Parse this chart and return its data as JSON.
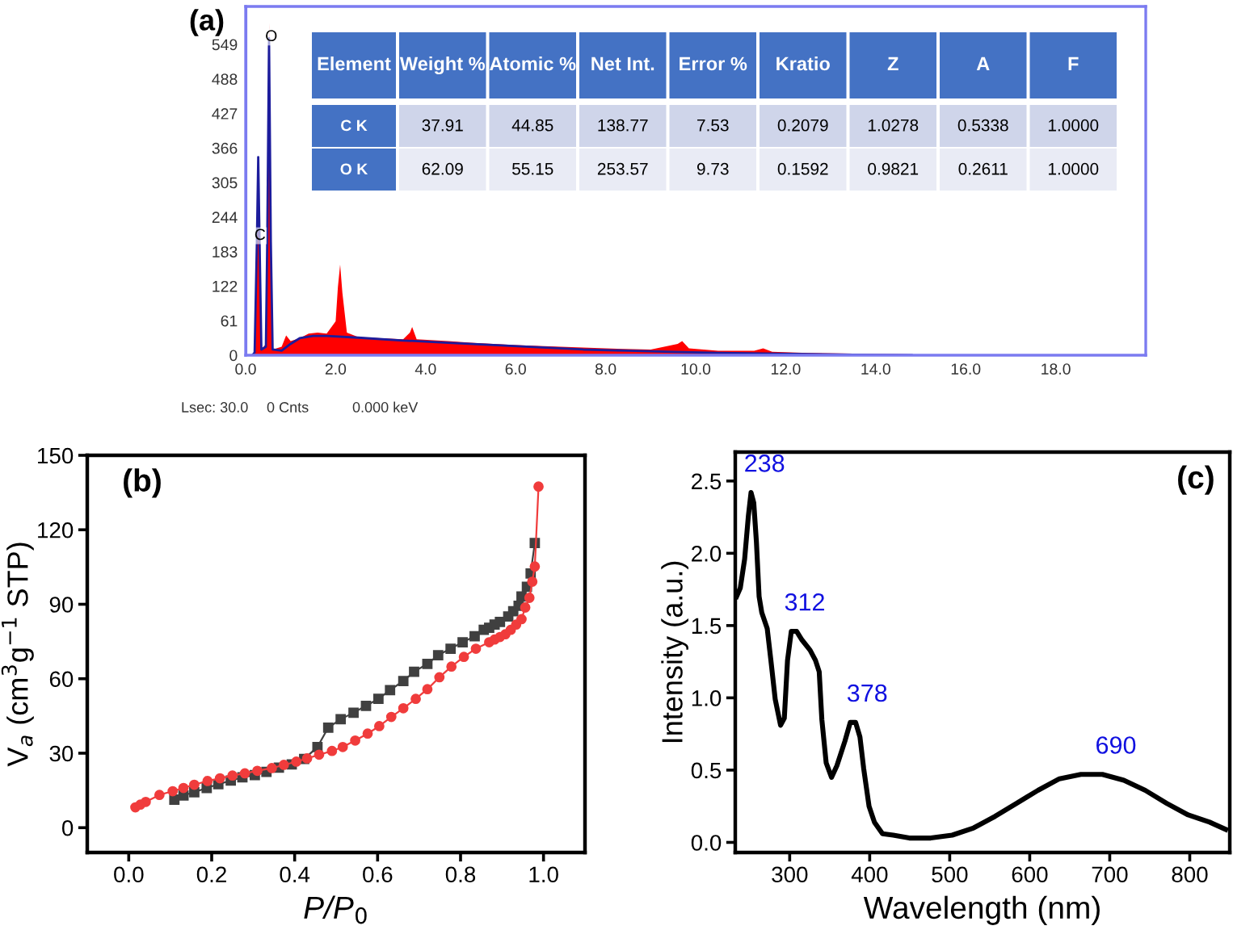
{
  "chart_data": [
    {
      "type": "area",
      "title": "(a)",
      "xlim": [
        0,
        20
      ],
      "ylim": [
        0,
        616
      ],
      "xticks": [
        {
          "value": 0,
          "label": "0.0"
        },
        {
          "value": 2,
          "label": "2.0"
        },
        {
          "value": 4,
          "label": "4.0"
        },
        {
          "value": 6,
          "label": "6.0"
        },
        {
          "value": 8,
          "label": "8.0"
        },
        {
          "value": 10,
          "label": "10.0"
        },
        {
          "value": 12,
          "label": "12.0"
        },
        {
          "value": 14,
          "label": "14.0"
        },
        {
          "value": 16,
          "label": "16.0"
        },
        {
          "value": 18,
          "label": "18.0"
        }
      ],
      "yticks": [
        0,
        61,
        122,
        183,
        244,
        305,
        366,
        427,
        488,
        549
      ],
      "series": [
        {
          "type": "area",
          "color": "#ff0000",
          "x": [
            0.1,
            0.2,
            0.25,
            0.28,
            0.31,
            0.35,
            0.45,
            0.5,
            0.525,
            0.55,
            0.6,
            0.8,
            0.9,
            1.0,
            1.2,
            1.4,
            1.6,
            1.8,
            2.0,
            2.05,
            2.1,
            2.15,
            2.25,
            2.5,
            3.0,
            3.5,
            3.65,
            3.7,
            3.8,
            4.5,
            5.0,
            6.0,
            7.0,
            8.0,
            9.0,
            9.6,
            9.7,
            9.85,
            10.5,
            11.3,
            11.5,
            11.7,
            12.5,
            13.5,
            14.5,
            15.0,
            15.5
          ],
          "values": [
            0,
            5,
            150,
            353,
            150,
            10,
            20,
            300,
            587,
            300,
            10,
            15,
            35,
            25,
            30,
            38,
            40,
            38,
            60,
            120,
            160,
            110,
            40,
            32,
            30,
            28,
            40,
            50,
            28,
            25,
            22,
            18,
            15,
            12,
            10,
            20,
            25,
            12,
            8,
            8,
            12,
            6,
            4,
            3,
            2,
            1,
            0
          ]
        },
        {
          "type": "line",
          "color": "#1c1c9c",
          "x": [
            0.15,
            0.2,
            0.25,
            0.28,
            0.31,
            0.35,
            0.45,
            0.48,
            0.52,
            0.56,
            0.6,
            0.8,
            1.0,
            1.2,
            1.5,
            1.8,
            2.5,
            3.5,
            4.5,
            5.5,
            6.5,
            7.5,
            8.5,
            9.5,
            10.5,
            11.5,
            12.5,
            13.5,
            14.8
          ],
          "values": [
            0,
            5,
            200,
            350,
            200,
            10,
            15,
            200,
            560,
            200,
            10,
            8,
            20,
            30,
            34,
            34,
            31,
            26,
            22,
            18,
            14,
            10,
            8,
            6,
            4,
            3,
            2,
            1,
            0
          ]
        }
      ],
      "annotations": [
        {
          "text": "C",
          "x": 0.32,
          "y": 211
        },
        {
          "text": "O",
          "x": 0.57,
          "y": 562
        },
        "Lsec: 30.0",
        "0 Cnts",
        "0.000 keV"
      ]
    },
    {
      "type": "other",
      "ylabel": "Element",
      "categories": [
        "Weight %",
        "Atomic %",
        "Net Int.",
        "Error %",
        "Kratio",
        "Z",
        "A",
        "F"
      ],
      "y_categories": [
        "C K",
        "O K"
      ],
      "cell_labels": [
        [
          "37.91",
          "44.85",
          "138.77",
          "7.53",
          "0.2079",
          "1.0278",
          "0.5338",
          "1.0000"
        ],
        [
          "62.09",
          "55.15",
          "253.57",
          "9.73",
          "0.1592",
          "0.9821",
          "0.2611",
          "1.0000"
        ]
      ]
    },
    {
      "type": "line",
      "title": "(b)",
      "xlabel": "P/P$_{0}$",
      "ylabel": "V$_{a}$ (cm$^{3}$g$^{−1}$ STP)",
      "xlim": [
        -0.1,
        1.1
      ],
      "ylim": [
        -10,
        150
      ],
      "xticks": [
        {
          "value": 0,
          "label": "0.0"
        },
        {
          "value": 0.2,
          "label": "0.2"
        },
        {
          "value": 0.4,
          "label": "0.4"
        },
        {
          "value": 0.6,
          "label": "0.6"
        },
        {
          "value": 0.8,
          "label": "0.8"
        },
        {
          "value": 1.0,
          "label": "1.0"
        }
      ],
      "yticks": [
        0,
        30,
        60,
        90,
        120,
        150
      ],
      "series": [
        {
          "color": "#f03c3c",
          "marker": "circle",
          "x": [
            0.016,
            0.028,
            0.041,
            0.074,
            0.106,
            0.132,
            0.158,
            0.19,
            0.22,
            0.25,
            0.28,
            0.31,
            0.345,
            0.374,
            0.404,
            0.43,
            0.459,
            0.49,
            0.516,
            0.546,
            0.576,
            0.604,
            0.633,
            0.662,
            0.692,
            0.72,
            0.749,
            0.778,
            0.808,
            0.837,
            0.869,
            0.882,
            0.895,
            0.908,
            0.921,
            0.934,
            0.947,
            0.956,
            0.966,
            0.973,
            0.979,
            0.988
          ],
          "values": [
            8.2,
            9.3,
            10.4,
            13.2,
            14.7,
            16.0,
            17.3,
            18.8,
            19.9,
            21.0,
            21.9,
            22.9,
            24.0,
            25.3,
            26.6,
            27.9,
            29.4,
            30.9,
            32.5,
            35.1,
            37.9,
            40.9,
            44.6,
            48.1,
            51.9,
            55.8,
            60.6,
            64.9,
            68.8,
            72.1,
            74.7,
            75.8,
            76.8,
            77.9,
            79.7,
            81.8,
            84.0,
            88.7,
            92.6,
            99.1,
            105.2,
            137.4
          ]
        },
        {
          "color": "#404040",
          "marker": "square",
          "x": [
            0.11,
            0.132,
            0.158,
            0.188,
            0.216,
            0.246,
            0.274,
            0.304,
            0.332,
            0.362,
            0.393,
            0.423,
            0.455,
            0.481,
            0.511,
            0.542,
            0.572,
            0.602,
            0.63,
            0.662,
            0.688,
            0.72,
            0.746,
            0.776,
            0.805,
            0.834,
            0.856,
            0.869,
            0.882,
            0.895,
            0.915,
            0.927,
            0.94,
            0.947,
            0.96,
            0.969,
            0.979
          ],
          "values": [
            11.3,
            13.0,
            14.3,
            16.0,
            17.5,
            19.0,
            20.3,
            21.2,
            22.5,
            24.2,
            25.5,
            27.7,
            32.5,
            40.3,
            43.7,
            46.3,
            49.1,
            51.9,
            55.4,
            59.1,
            62.8,
            66.0,
            69.5,
            72.1,
            74.7,
            77.1,
            79.7,
            80.5,
            81.8,
            82.9,
            85.1,
            87.2,
            89.4,
            93.1,
            97.0,
            102.4,
            114.7
          ]
        }
      ]
    },
    {
      "type": "line",
      "title": "(c)",
      "xlabel": "Wavelength (nm)",
      "ylabel": "Intensity (a.u.)",
      "xlim": [
        232,
        850
      ],
      "ylim": [
        -0.07,
        2.7
      ],
      "xticks": [
        300,
        400,
        500,
        600,
        700,
        800
      ],
      "yticks": [
        {
          "value": 0,
          "label": "0.0"
        },
        {
          "value": 0.5,
          "label": "0.5"
        },
        {
          "value": 1.0,
          "label": "1.0"
        },
        {
          "value": 1.5,
          "label": "1.5"
        },
        {
          "value": 2.0,
          "label": "2.0"
        },
        {
          "value": 2.5,
          "label": "2.5"
        }
      ],
      "series": [
        {
          "color": "#000000",
          "x": [
            233.6,
            238.3,
            243.7,
            248.4,
            251.7,
            255.1,
            258.4,
            261.8,
            265.1,
            271.9,
            276.5,
            281.9,
            288.6,
            293.3,
            297.3,
            302.0,
            308.7,
            315.4,
            325.5,
            332.2,
            336.9,
            340.2,
            345.6,
            352.3,
            359.0,
            369.0,
            375.7,
            382.4,
            387.8,
            392.5,
            399.2,
            405.9,
            416.0,
            429.4,
            449.5,
            476.3,
            503.1,
            529.9,
            556.7,
            583.5,
            610.3,
            637.1,
            663.9,
            690.8,
            717.6,
            744.4,
            771.2,
            798.0,
            824.8,
            844.9
          ],
          "values": [
            1.7,
            1.76,
            1.96,
            2.26,
            2.42,
            2.35,
            2.08,
            1.7,
            1.59,
            1.48,
            1.26,
            0.99,
            0.81,
            0.86,
            1.26,
            1.46,
            1.46,
            1.4,
            1.33,
            1.26,
            1.18,
            0.85,
            0.55,
            0.45,
            0.53,
            0.7,
            0.83,
            0.83,
            0.73,
            0.51,
            0.25,
            0.14,
            0.06,
            0.05,
            0.03,
            0.03,
            0.05,
            0.1,
            0.18,
            0.27,
            0.36,
            0.44,
            0.47,
            0.47,
            0.43,
            0.36,
            0.27,
            0.19,
            0.14,
            0.09
          ]
        }
      ],
      "annotations": [
        {
          "text": "238",
          "x": 251.7,
          "y": 2.42
        },
        {
          "text": "312",
          "x": 302.0,
          "y": 1.46
        },
        {
          "text": "378",
          "x": 380,
          "y": 0.83
        },
        {
          "text": "690",
          "x": 690.8,
          "y": 0.47
        }
      ]
    }
  ]
}
